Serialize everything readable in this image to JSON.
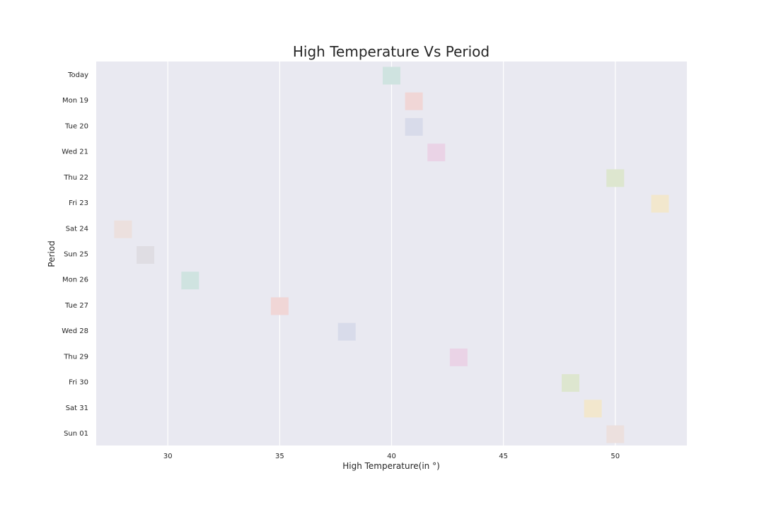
{
  "chart_data": {
    "type": "scatter",
    "title": "High Temperature Vs Period",
    "xlabel": "High Temperature(in °)",
    "ylabel": "Period",
    "xlim": [
      26.8,
      53.2
    ],
    "xticks": [
      30,
      35,
      40,
      45,
      50
    ],
    "grid": "vertical",
    "categories": [
      "Today",
      "Mon 19",
      "Tue 20",
      "Wed 21",
      "Thu 22",
      "Fri 23",
      "Sat 24",
      "Sun 25",
      "Mon 26",
      "Tue 27",
      "Wed 28",
      "Thu 29",
      "Fri 30",
      "Sat 31",
      "Sun 01"
    ],
    "values": [
      40,
      41,
      41,
      42,
      50,
      52,
      28,
      29,
      31,
      35,
      38,
      43,
      48,
      49,
      50
    ],
    "colors": [
      "#cfe3e0",
      "#f0d6d6",
      "#d8dbea",
      "#ead3e6",
      "#dde6cf",
      "#f2e7cd",
      "#ece0de",
      "#dfdde3",
      "#cfe3e0",
      "#f0d6d6",
      "#d8dbea",
      "#ead3e6",
      "#dde6cf",
      "#f2e7cd",
      "#ece0de"
    ]
  }
}
